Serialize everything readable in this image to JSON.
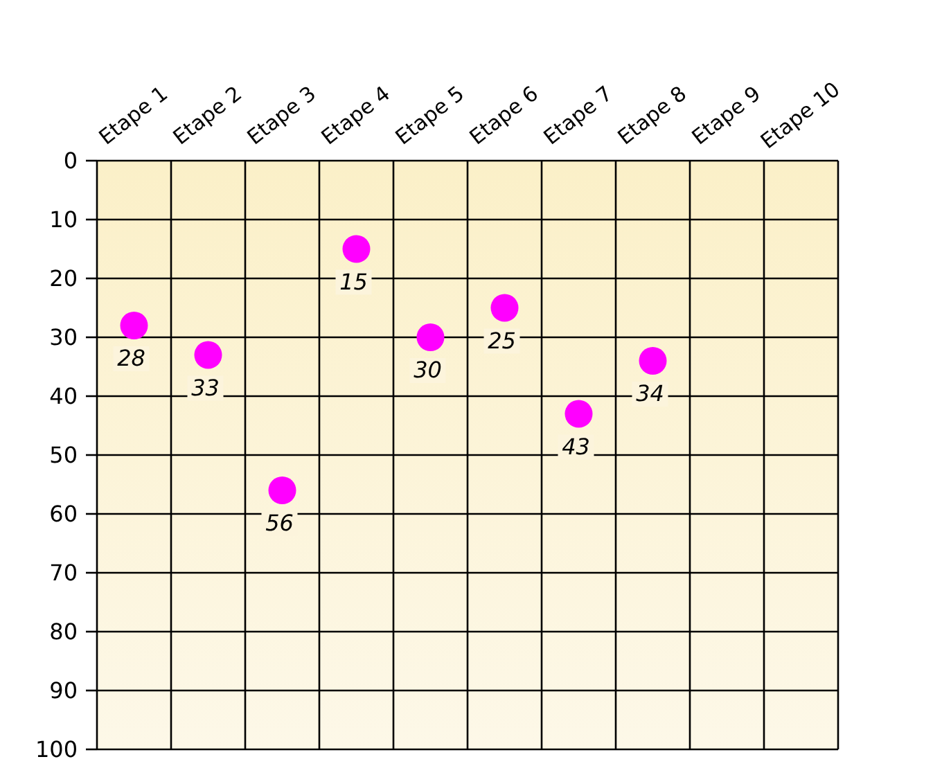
{
  "chart_data": {
    "type": "scatter",
    "categories": [
      "Etape 1",
      "Etape 2",
      "Etape 3",
      "Etape 4",
      "Etape 5",
      "Etape 6",
      "Etape 7",
      "Etape 8",
      "Etape 9",
      "Etape 10"
    ],
    "values": [
      28,
      33,
      56,
      15,
      30,
      25,
      43,
      34,
      null,
      null
    ],
    "color": "#ff00ff",
    "marker": "circle",
    "data_labels": true,
    "ylim": [
      100,
      0
    ],
    "yticks": [
      0,
      10,
      20,
      30,
      40,
      50,
      60,
      70,
      80,
      90,
      100
    ],
    "grid": true
  }
}
